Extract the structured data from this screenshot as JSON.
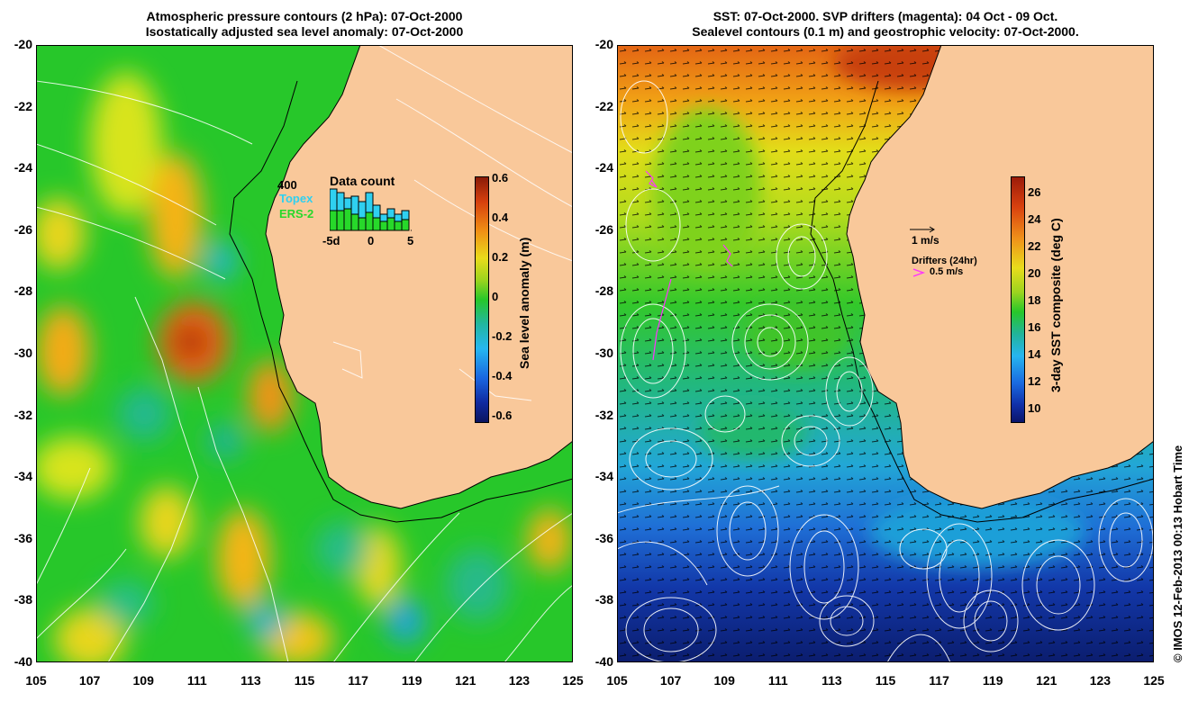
{
  "left_panel": {
    "title_line1": "Atmospheric pressure contours (2 hPa): 07-Oct-2000",
    "title_line2": "Isostatically adjusted sea level anomaly: 07-Oct-2000",
    "colorbar_label": "Sea level anomaly (m)",
    "colorbar_ticks": [
      "0.6",
      "0.4",
      "0.2",
      "0",
      "-0.2",
      "-0.4",
      "-0.6"
    ],
    "data_count": {
      "title": "Data count",
      "count_label": "400",
      "topex_label": "Topex",
      "ers2_label": "ERS-2",
      "x_ticks": [
        "-5d",
        "0",
        "5"
      ]
    }
  },
  "right_panel": {
    "title_line1": "SST: 07-Oct-2000. SVP drifters (magenta): 04 Oct - 09 Oct.",
    "title_line2": "Sealevel contours (0.1 m) and geostrophic velocity: 07-Oct-2000.",
    "colorbar_label": "3-day SST composite (deg C)",
    "colorbar_ticks": [
      "26",
      "24",
      "22",
      "20",
      "18",
      "16",
      "14",
      "12",
      "10"
    ],
    "velocity_label": "1 m/s",
    "drifters_label": "Drifters (24hr)",
    "drifter_speed_label": "0.5 m/s"
  },
  "axes": {
    "lat_ticks": [
      "-20",
      "-22",
      "-24",
      "-26",
      "-28",
      "-30",
      "-32",
      "-34",
      "-36",
      "-38",
      "-40"
    ],
    "lon_ticks": [
      "105",
      "107",
      "109",
      "111",
      "113",
      "115",
      "117",
      "119",
      "121",
      "123",
      "125"
    ],
    "lon_range": [
      105,
      125
    ],
    "lat_range": [
      -40,
      -20
    ]
  },
  "credit": "© IMOS 12-Feb-2013 00:13 Hobart Time",
  "colors": {
    "land": "#f9c89a",
    "ocean_green": "#2ccf1f",
    "sst_warm": "#e66a12",
    "sst_cold": "#0d2fb0",
    "contour": "#ffffff",
    "drifter": "#ff33ff"
  }
}
